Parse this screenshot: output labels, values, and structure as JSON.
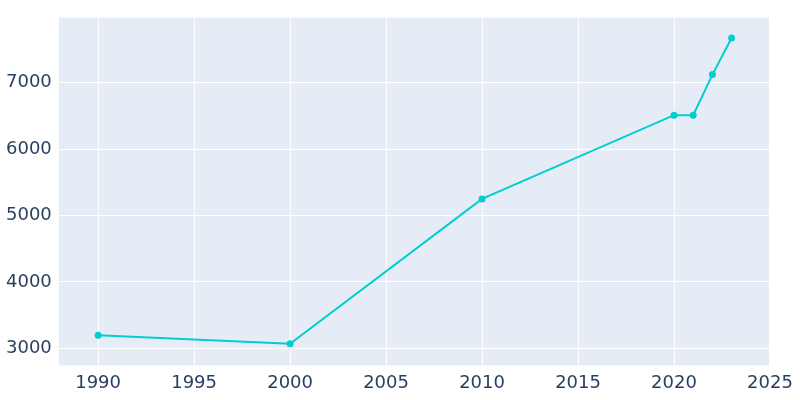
{
  "chart_data": {
    "type": "line",
    "x": [
      1990,
      2000,
      2010,
      2020,
      2021,
      2022,
      2023
    ],
    "values": [
      3200,
      3070,
      5250,
      6510,
      6510,
      7120,
      7670
    ],
    "color": "#00ced1",
    "marker": "circle",
    "xlim": [
      1987.9,
      2025
    ],
    "xticks": [
      1990,
      1995,
      2000,
      2005,
      2010,
      2015,
      2020,
      2025
    ],
    "ylim": [
      2730,
      7990
    ],
    "yticks": [
      3000,
      4000,
      5000,
      6000,
      7000
    ],
    "grid": true
  }
}
